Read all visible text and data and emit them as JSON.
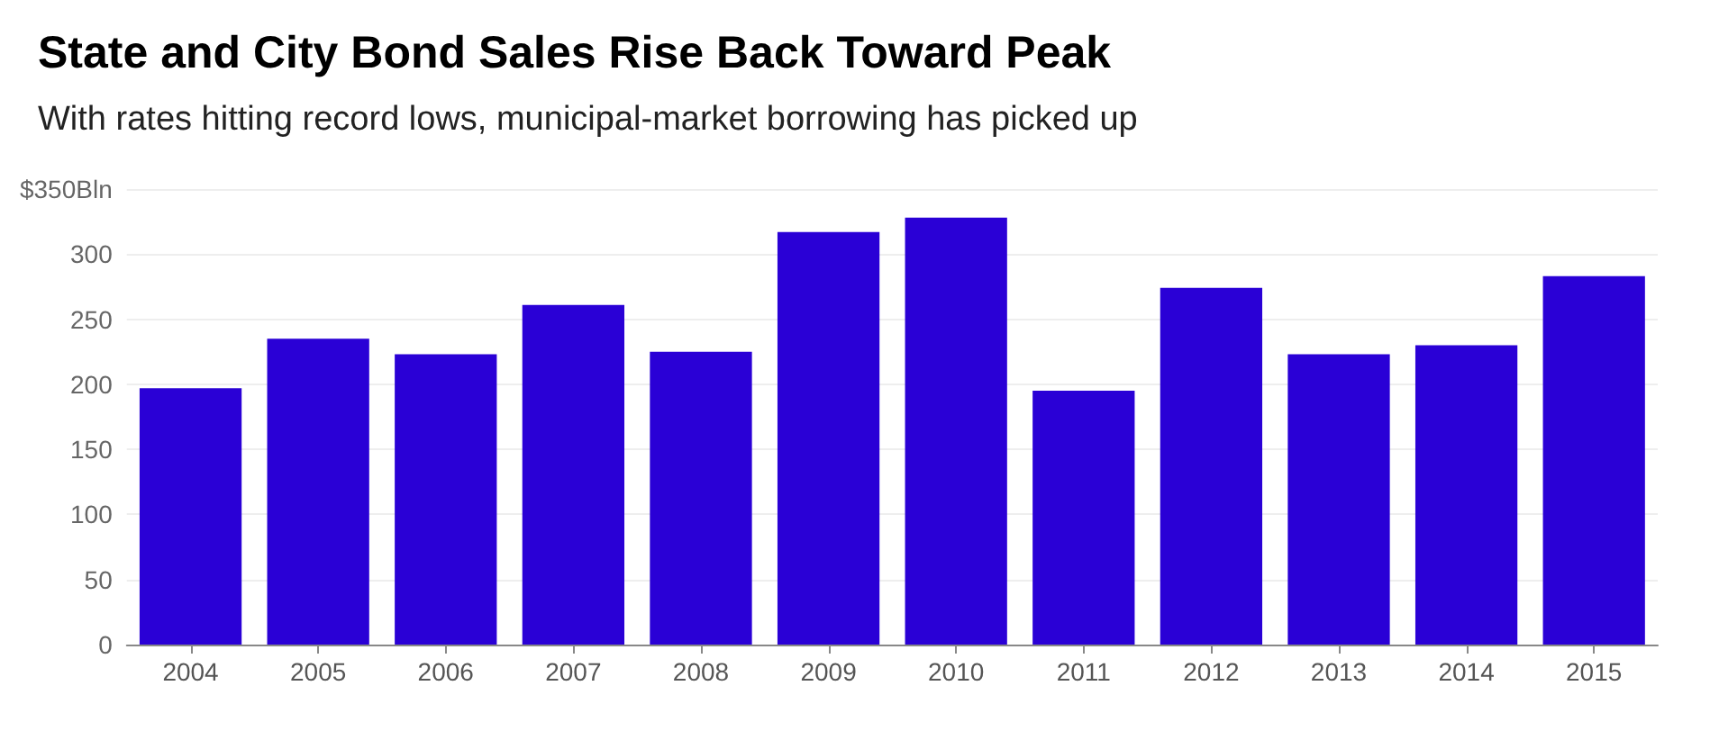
{
  "chart_data": {
    "type": "bar",
    "title": "State and City Bond Sales Rise Back Toward Peak",
    "subtitle": "With rates hitting record lows, municipal-market borrowing has picked up",
    "categories": [
      "2004",
      "2005",
      "2006",
      "2007",
      "2008",
      "2009",
      "2010",
      "2011",
      "2012",
      "2013",
      "2014",
      "2015"
    ],
    "values": [
      197,
      235,
      223,
      261,
      225,
      317,
      328,
      195,
      274,
      223,
      230,
      283
    ],
    "color": "#2a00d6",
    "ylim": [
      0,
      350
    ],
    "yticks": [
      0,
      50,
      100,
      150,
      200,
      250,
      300,
      {
        "value": 350,
        "label": "$350Bln"
      }
    ],
    "grid": "y"
  }
}
